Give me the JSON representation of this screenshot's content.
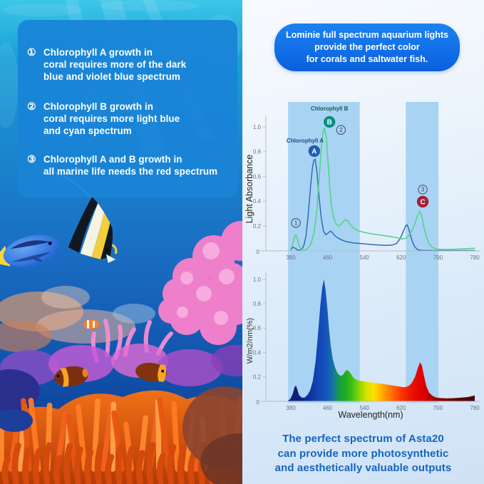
{
  "left_panel": {
    "points": [
      {
        "num": "①",
        "text": "Chlorophyll A growth in\ncoral requires more of the dark\nblue and violet blue spectrum"
      },
      {
        "num": "②",
        "text": "Chlorophyll B growth in\ncoral requires more light blue\nand cyan spectrum"
      },
      {
        "num": "③",
        "text": "Chlorophyll A and B growth in\nall marine life needs the red spectrum"
      }
    ]
  },
  "banner": {
    "text": "Lominie full spectrum aquarium lights\nprovide the perfect color\nfor corals and saltwater fish.",
    "bg": "#0d63e0"
  },
  "footer": {
    "text": "The perfect spectrum of Asta20\ncan provide more photosynthetic\nand aesthetically valuable outputs",
    "color": "#1565c0"
  },
  "chart_data": [
    {
      "type": "line",
      "title": "",
      "xlabel": "",
      "ylabel": "Light Absorbance",
      "x_ticks": [
        380,
        460,
        540,
        620,
        700,
        780
      ],
      "y_ticks": [
        "0",
        "0.2",
        "0.4",
        "0.6",
        "0.8",
        "1.0"
      ],
      "xlim": [
        372,
        790
      ],
      "ylim": [
        0,
        1.2
      ],
      "grid": false,
      "band_color": "#a9d3f3",
      "highlight_bands": [
        [
          374,
          530
        ],
        [
          630,
          701
        ]
      ],
      "series": [
        {
          "name": "Chlorophyll A",
          "color": "#2e6db8",
          "points": [
            [
              380,
              0.01
            ],
            [
              385,
              0.03
            ],
            [
              390,
              0.02
            ],
            [
              396,
              0.005
            ],
            [
              403,
              0.01
            ],
            [
              408,
              0.04
            ],
            [
              413,
              0.12
            ],
            [
              418,
              0.3
            ],
            [
              423,
              0.52
            ],
            [
              427,
              0.67
            ],
            [
              430,
              0.73
            ],
            [
              433,
              0.74
            ],
            [
              437,
              0.63
            ],
            [
              441,
              0.45
            ],
            [
              446,
              0.27
            ],
            [
              451,
              0.16
            ],
            [
              456,
              0.13
            ],
            [
              461,
              0.145
            ],
            [
              466,
              0.16
            ],
            [
              470,
              0.15
            ],
            [
              475,
              0.125
            ],
            [
              482,
              0.105
            ],
            [
              490,
              0.09
            ],
            [
              500,
              0.075
            ],
            [
              515,
              0.065
            ],
            [
              535,
              0.058
            ],
            [
              560,
              0.05
            ],
            [
              585,
              0.045
            ],
            [
              600,
              0.047
            ],
            [
              610,
              0.06
            ],
            [
              618,
              0.1
            ],
            [
              625,
              0.16
            ],
            [
              630,
              0.205
            ],
            [
              633,
              0.21
            ],
            [
              637,
              0.17
            ],
            [
              643,
              0.09
            ],
            [
              649,
              0.035
            ],
            [
              656,
              0.01
            ],
            [
              665,
              0.004
            ],
            [
              690,
              0.003
            ],
            [
              780,
              0.003
            ]
          ]
        },
        {
          "name": "Chlorophyll B",
          "color": "#4fd483",
          "points": [
            [
              380,
              0.015
            ],
            [
              384,
              0.05
            ],
            [
              388,
              0.115
            ],
            [
              391,
              0.13
            ],
            [
              394,
              0.1
            ],
            [
              398,
              0.04
            ],
            [
              403,
              0.01
            ],
            [
              410,
              0.005
            ],
            [
              417,
              0.02
            ],
            [
              424,
              0.06
            ],
            [
              430,
              0.14
            ],
            [
              436,
              0.3
            ],
            [
              441,
              0.55
            ],
            [
              446,
              0.82
            ],
            [
              450,
              0.96
            ],
            [
              453,
              0.99
            ],
            [
              457,
              0.92
            ],
            [
              461,
              0.72
            ],
            [
              465,
              0.5
            ],
            [
              469,
              0.35
            ],
            [
              474,
              0.26
            ],
            [
              479,
              0.215
            ],
            [
              485,
              0.2
            ],
            [
              492,
              0.225
            ],
            [
              498,
              0.25
            ],
            [
              503,
              0.245
            ],
            [
              509,
              0.215
            ],
            [
              516,
              0.185
            ],
            [
              525,
              0.165
            ],
            [
              537,
              0.152
            ],
            [
              552,
              0.14
            ],
            [
              570,
              0.13
            ],
            [
              588,
              0.12
            ],
            [
              603,
              0.112
            ],
            [
              615,
              0.103
            ],
            [
              624,
              0.096
            ],
            [
              632,
              0.105
            ],
            [
              640,
              0.14
            ],
            [
              648,
              0.2
            ],
            [
              655,
              0.28
            ],
            [
              660,
              0.32
            ],
            [
              664,
              0.29
            ],
            [
              669,
              0.2
            ],
            [
              675,
              0.11
            ],
            [
              681,
              0.055
            ],
            [
              688,
              0.028
            ],
            [
              696,
              0.016
            ],
            [
              706,
              0.012
            ],
            [
              725,
              0.012
            ],
            [
              750,
              0.016
            ],
            [
              780,
              0.022
            ]
          ]
        }
      ],
      "annotations": [
        {
          "type": "label",
          "text": "Chlorophyll B",
          "nm": 464,
          "v": 1.132,
          "color": "#0f5f58"
        },
        {
          "type": "badge",
          "text": "B",
          "nm": 464,
          "v": 1.04,
          "fill": "#0a8f83"
        },
        {
          "type": "circled",
          "text": "2",
          "nm": 489,
          "v": 0.975
        },
        {
          "type": "label",
          "text": "Chlorophyll A",
          "nm": 411,
          "v": 0.875,
          "color": "#1a4f8e"
        },
        {
          "type": "badge",
          "text": "A",
          "nm": 431,
          "v": 0.805,
          "fill": "#1d5fae"
        },
        {
          "type": "circled",
          "text": "1",
          "nm": 391,
          "v": 0.225
        },
        {
          "type": "circled",
          "text": "3",
          "nm": 667,
          "v": 0.495
        },
        {
          "type": "badge",
          "text": "C",
          "nm": 667,
          "v": 0.397,
          "fill": "#a81f35"
        }
      ]
    },
    {
      "type": "area",
      "title": "",
      "xlabel": "Wavelength(nm)",
      "ylabel": "W/m2/nm(%)",
      "x_ticks": [
        380,
        460,
        540,
        620,
        700,
        780
      ],
      "y_ticks": [
        "0",
        "0.2",
        "0.4",
        "0.6",
        "0.8",
        "1.0"
      ],
      "xlim": [
        372,
        790
      ],
      "ylim": [
        0,
        1.07
      ],
      "grid": false,
      "points": [
        [
          374,
          0.005
        ],
        [
          379,
          0.02
        ],
        [
          384,
          0.06
        ],
        [
          388,
          0.115
        ],
        [
          391,
          0.13
        ],
        [
          394,
          0.1
        ],
        [
          398,
          0.05
        ],
        [
          404,
          0.03
        ],
        [
          410,
          0.03
        ],
        [
          416,
          0.05
        ],
        [
          422,
          0.09
        ],
        [
          428,
          0.17
        ],
        [
          434,
          0.33
        ],
        [
          439,
          0.55
        ],
        [
          444,
          0.78
        ],
        [
          448,
          0.93
        ],
        [
          452,
          1.0
        ],
        [
          455,
          0.93
        ],
        [
          459,
          0.78
        ],
        [
          463,
          0.6
        ],
        [
          467,
          0.45
        ],
        [
          471,
          0.35
        ],
        [
          476,
          0.28
        ],
        [
          481,
          0.235
        ],
        [
          487,
          0.21
        ],
        [
          493,
          0.215
        ],
        [
          499,
          0.25
        ],
        [
          504,
          0.255
        ],
        [
          509,
          0.235
        ],
        [
          515,
          0.2
        ],
        [
          521,
          0.18
        ],
        [
          528,
          0.17
        ],
        [
          536,
          0.165
        ],
        [
          546,
          0.16
        ],
        [
          558,
          0.152
        ],
        [
          572,
          0.148
        ],
        [
          586,
          0.14
        ],
        [
          600,
          0.131
        ],
        [
          610,
          0.125
        ],
        [
          620,
          0.118
        ],
        [
          628,
          0.116
        ],
        [
          636,
          0.125
        ],
        [
          643,
          0.15
        ],
        [
          650,
          0.2
        ],
        [
          656,
          0.27
        ],
        [
          661,
          0.32
        ],
        [
          665,
          0.295
        ],
        [
          670,
          0.2
        ],
        [
          675,
          0.12
        ],
        [
          681,
          0.07
        ],
        [
          688,
          0.045
        ],
        [
          695,
          0.032
        ],
        [
          704,
          0.027
        ],
        [
          718,
          0.024
        ],
        [
          733,
          0.026
        ],
        [
          750,
          0.03
        ],
        [
          765,
          0.035
        ],
        [
          780,
          0.048
        ]
      ],
      "spectrum_stops": [
        [
          0.012,
          "#141a6e"
        ],
        [
          0.06,
          "#10207f"
        ],
        [
          0.11,
          "#0d2f9c"
        ],
        [
          0.16,
          "#1247b5"
        ],
        [
          0.2,
          "#1552bd"
        ],
        [
          0.24,
          "#1274a6"
        ],
        [
          0.27,
          "#169a4d"
        ],
        [
          0.31,
          "#1fae1f"
        ],
        [
          0.35,
          "#49c414"
        ],
        [
          0.38,
          "#8ad406"
        ],
        [
          0.42,
          "#d4e200"
        ],
        [
          0.46,
          "#ffdf00"
        ],
        [
          0.51,
          "#ffa300"
        ],
        [
          0.56,
          "#ff6a00"
        ],
        [
          0.61,
          "#fa3300"
        ],
        [
          0.67,
          "#ea0f00"
        ],
        [
          0.72,
          "#e10000"
        ],
        [
          0.77,
          "#b00000"
        ],
        [
          0.81,
          "#880202"
        ],
        [
          0.9,
          "#5e0404"
        ],
        [
          1.0,
          "#4a0505"
        ]
      ]
    }
  ]
}
